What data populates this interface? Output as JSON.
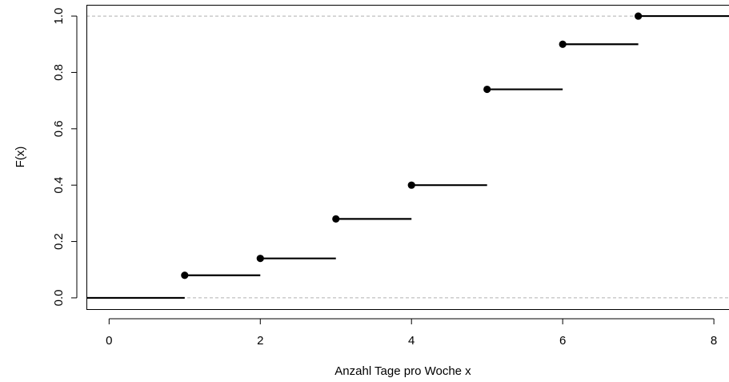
{
  "chart_data": {
    "type": "step",
    "title": "",
    "xlabel": "Anzahl Tage pro Woche  x",
    "ylabel": "F(x)",
    "xlim": [
      -0.3,
      8.2
    ],
    "ylim": [
      -0.04,
      1.04
    ],
    "x_ticks": [
      0,
      2,
      4,
      6,
      8
    ],
    "y_ticks": [
      0.0,
      0.2,
      0.4,
      0.6,
      0.8,
      1.0
    ],
    "x_tick_labels": [
      "0",
      "2",
      "4",
      "6",
      "8"
    ],
    "y_tick_labels": [
      "0.0",
      "0.2",
      "0.4",
      "0.6",
      "0.8",
      "1.0"
    ],
    "reference_lines_y": [
      0,
      1
    ],
    "steps": [
      {
        "x_start": -0.3,
        "x_end": 1,
        "y": 0.0,
        "point": false
      },
      {
        "x_start": 1,
        "x_end": 2,
        "y": 0.08,
        "point": true
      },
      {
        "x_start": 2,
        "x_end": 3,
        "y": 0.14,
        "point": true
      },
      {
        "x_start": 3,
        "x_end": 4,
        "y": 0.28,
        "point": true
      },
      {
        "x_start": 4,
        "x_end": 5,
        "y": 0.4,
        "point": true
      },
      {
        "x_start": 5,
        "x_end": 6,
        "y": 0.74,
        "point": true
      },
      {
        "x_start": 6,
        "x_end": 7,
        "y": 0.9,
        "point": true
      },
      {
        "x_start": 7,
        "x_end": 8.2,
        "y": 1.0,
        "point": true
      }
    ],
    "colors": {
      "line": "#000000",
      "reference": "#b0b0b0"
    },
    "grid": false,
    "legend": "none"
  }
}
